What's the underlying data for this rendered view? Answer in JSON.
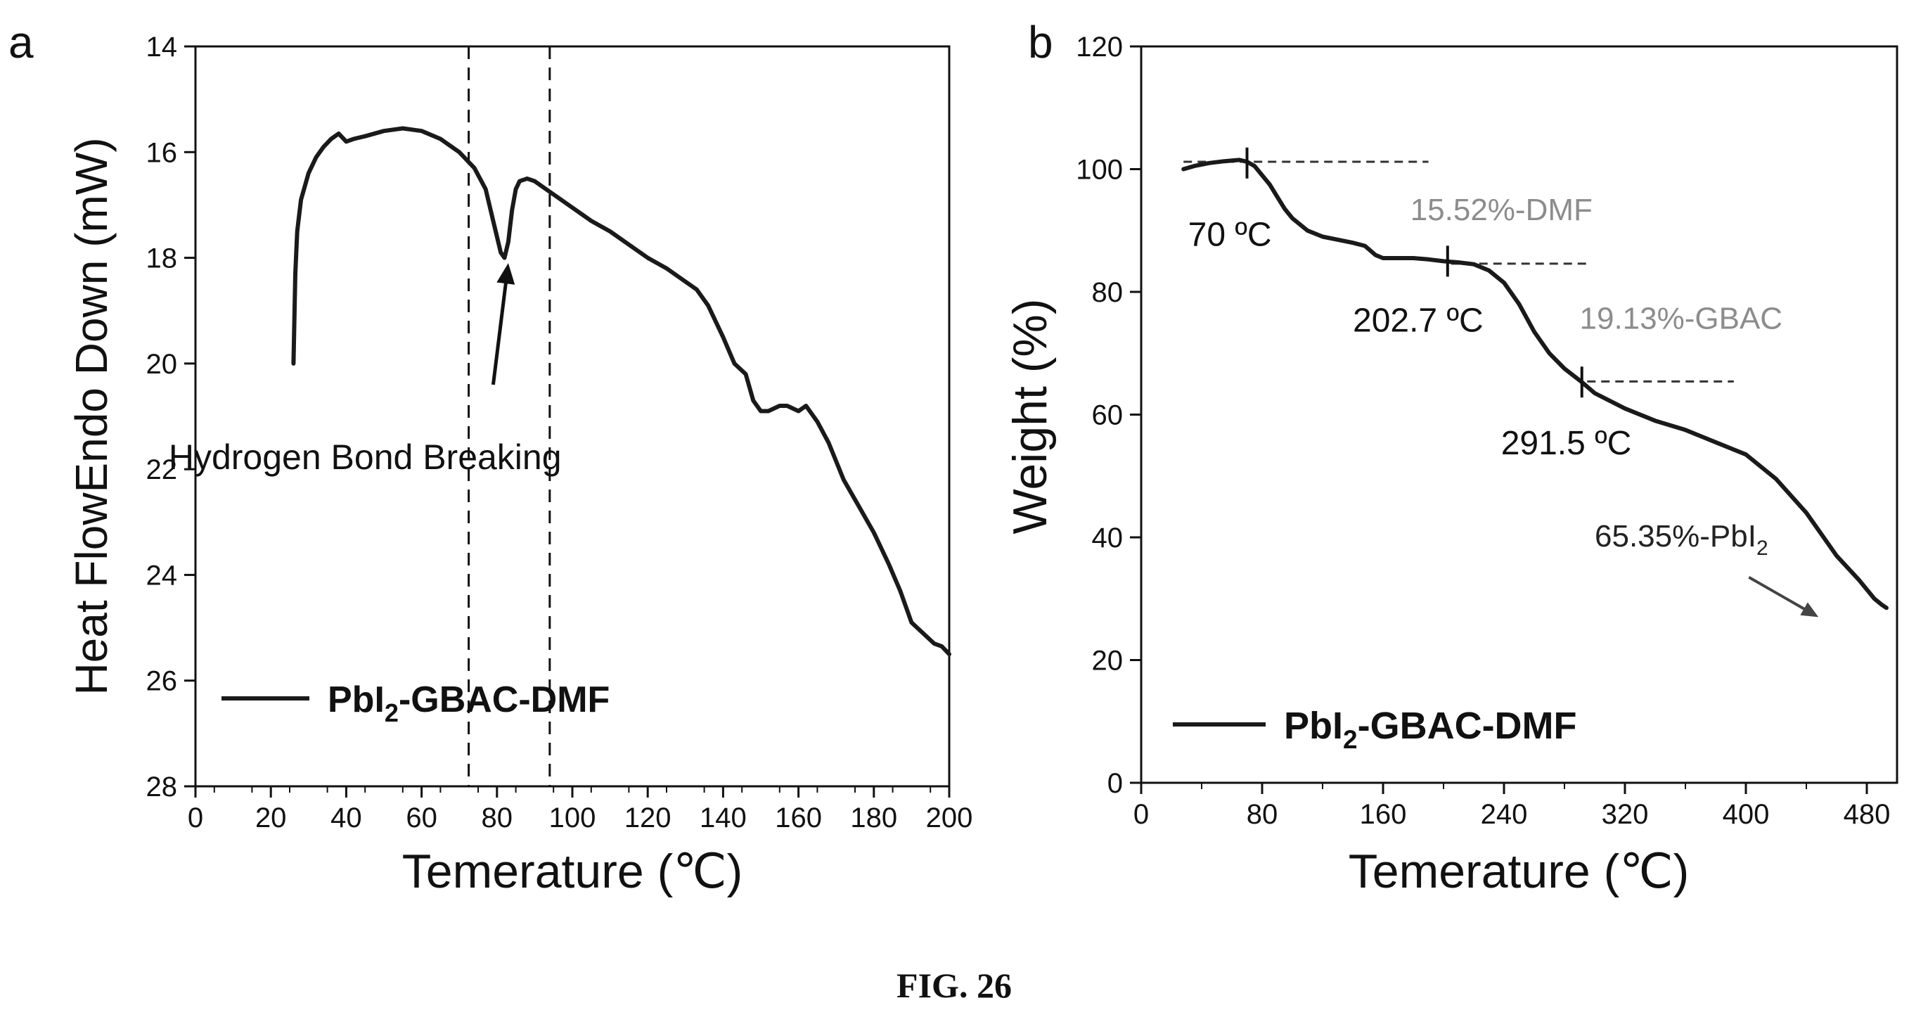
{
  "figure_caption": "FIG. 26",
  "chart_data": [
    {
      "type": "line",
      "panel_label": "a",
      "xlabel": "Temerature (℃)",
      "ylabel": "Heat FlowEndo Down (mW)",
      "xlim": [
        0,
        200
      ],
      "ylim": [
        28,
        14
      ],
      "y_inverted": true,
      "x_ticks": [
        0,
        20,
        40,
        60,
        80,
        100,
        120,
        140,
        160,
        180,
        200
      ],
      "y_ticks": [
        14,
        16,
        18,
        20,
        22,
        24,
        26,
        28
      ],
      "legend": {
        "label_main": "PbI",
        "label_sub": "2",
        "label_rest": "-GBAC-DMF",
        "position": "bottom-left"
      },
      "series": [
        {
          "name": "PbI2-GBAC-DMF",
          "x": [
            26,
            26.5,
            27,
            28,
            30,
            32,
            34,
            36,
            38,
            40,
            42,
            45,
            50,
            55,
            60,
            65,
            70,
            74,
            77,
            79,
            81,
            82,
            83,
            84,
            85,
            86,
            88,
            90,
            93,
            96,
            100,
            105,
            110,
            115,
            120,
            125,
            130,
            133,
            136,
            140,
            143,
            146,
            148,
            150,
            152,
            155,
            157,
            160,
            162,
            165,
            168,
            172,
            176,
            180,
            184,
            187,
            190,
            193,
            196,
            198,
            200
          ],
          "y": [
            20.0,
            18.3,
            17.5,
            16.9,
            16.4,
            16.1,
            15.9,
            15.75,
            15.65,
            15.8,
            15.75,
            15.7,
            15.6,
            15.55,
            15.6,
            15.75,
            16.0,
            16.3,
            16.7,
            17.3,
            17.9,
            18.0,
            17.7,
            17.1,
            16.7,
            16.55,
            16.5,
            16.55,
            16.7,
            16.85,
            17.05,
            17.3,
            17.5,
            17.75,
            18.0,
            18.2,
            18.45,
            18.6,
            18.9,
            19.5,
            20.0,
            20.2,
            20.7,
            20.9,
            20.9,
            20.8,
            20.8,
            20.9,
            20.8,
            21.1,
            21.5,
            22.2,
            22.7,
            23.2,
            23.8,
            24.3,
            24.9,
            25.1,
            25.3,
            25.35,
            25.5
          ]
        }
      ],
      "reference_lines_x": [
        72.5,
        94
      ],
      "annotations": [
        {
          "text": "Hydrogen Bond Breaking",
          "x": 45,
          "y": 22.0
        }
      ],
      "arrow": {
        "from_x": 79,
        "from_y": 20.4,
        "to_x": 83,
        "to_y": 18.1
      }
    },
    {
      "type": "line",
      "panel_label": "b",
      "xlabel": "Temerature (℃)",
      "ylabel": "Weight (%)",
      "xlim": [
        0,
        500
      ],
      "ylim": [
        0,
        120
      ],
      "x_ticks": [
        0,
        80,
        160,
        240,
        320,
        400,
        480
      ],
      "y_ticks": [
        0,
        20,
        40,
        60,
        80,
        100,
        120
      ],
      "legend": {
        "label_main": "PbI",
        "label_sub": "2",
        "label_rest": "-GBAC-DMF",
        "position": "bottom-left"
      },
      "series": [
        {
          "name": "PbI2-GBAC-DMF",
          "x": [
            28,
            35,
            45,
            55,
            65,
            70,
            75,
            80,
            85,
            90,
            95,
            100,
            110,
            120,
            130,
            140,
            148,
            155,
            160,
            170,
            180,
            190,
            200,
            210,
            220,
            230,
            240,
            250,
            260,
            270,
            280,
            291.5,
            300,
            320,
            340,
            360,
            380,
            400,
            420,
            440,
            460,
            475,
            485,
            490,
            493
          ],
          "y": [
            100,
            100.5,
            101,
            101.3,
            101.5,
            101.2,
            100.5,
            99,
            97.5,
            95.5,
            93.5,
            92,
            90,
            89,
            88.5,
            88,
            87.5,
            86,
            85.5,
            85.5,
            85.5,
            85.3,
            85,
            84.8,
            84.5,
            83.5,
            81.5,
            78,
            73.5,
            70,
            67.5,
            65.3,
            63.5,
            61,
            59,
            57.5,
            55.5,
            53.5,
            49.5,
            44,
            37,
            33,
            30,
            29,
            28.5
          ]
        }
      ],
      "onset_markers": [
        {
          "x": 70,
          "y": 101
        },
        {
          "x": 202.7,
          "y": 85
        },
        {
          "x": 291.5,
          "y": 65.3
        }
      ],
      "reference_segments": [
        {
          "x1": 28,
          "x2": 190,
          "y": 101.2
        },
        {
          "x1": 205,
          "x2": 295,
          "y": 84.6
        },
        {
          "x1": 295,
          "x2": 392,
          "y": 65.4
        }
      ],
      "annotations": [
        {
          "text": "70 ºC",
          "x": 31,
          "y": 87.5
        },
        {
          "text": "202.7 ºC",
          "x": 140,
          "y": 73.5
        },
        {
          "text": "291.5 ºC",
          "x": 238,
          "y": 53.5
        },
        {
          "text": "15.52%-DMF",
          "x": 178,
          "y": 91.7
        },
        {
          "text": "19.13%-GBAC",
          "x": 290,
          "y": 74.0
        }
      ],
      "pbi_label": {
        "main": "65.35%-PbI",
        "sub": "2",
        "x": 300,
        "y": 38.5
      },
      "arrow": {
        "from_x": 402,
        "from_y": 33.5,
        "to_x": 448,
        "to_y": 27
      },
      "colors": {
        "series": "#1a1a1a",
        "gray_annotations": "#8c8c8c",
        "arrow_b": "#444444"
      }
    }
  ]
}
